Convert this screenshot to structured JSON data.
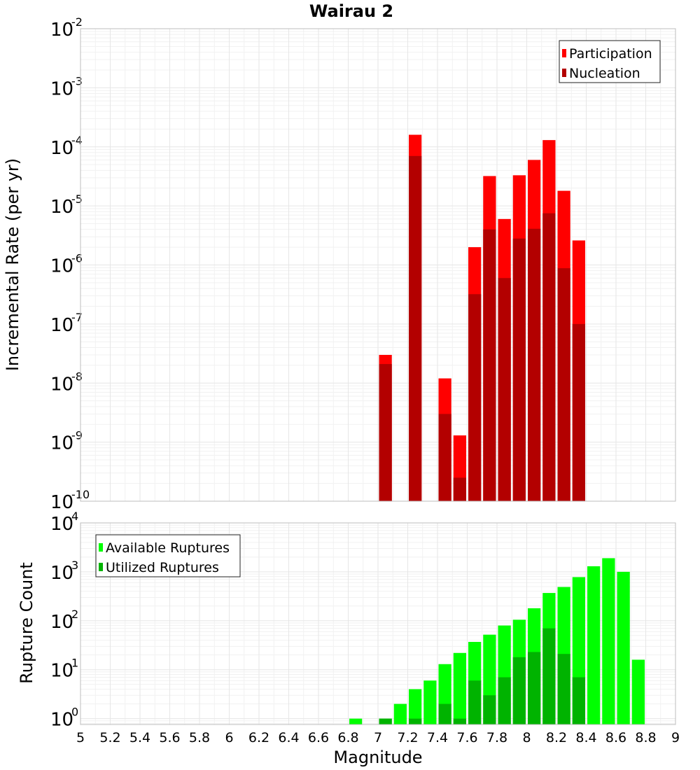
{
  "chart_data": [
    {
      "type": "bar",
      "title": "Wairau 2",
      "xlabel": "",
      "ylabel": "Incremental Rate (per yr)",
      "yscale": "log",
      "ylim_exp": [
        -10,
        -2
      ],
      "xlim": [
        5,
        9
      ],
      "bin_width": 0.1,
      "grid": true,
      "legend_position": "top-right",
      "series": [
        {
          "name": "Participation",
          "color": "#ff0000",
          "x": [
            7.05,
            7.25,
            7.45,
            7.55,
            7.65,
            7.75,
            7.85,
            7.95,
            8.05,
            8.15,
            8.25,
            8.35
          ],
          "values": [
            3e-08,
            0.00016,
            1.2e-08,
            1.3e-09,
            2e-06,
            3.2e-05,
            6e-06,
            3.3e-05,
            6e-05,
            0.00013,
            1.8e-05,
            2.6e-06
          ]
        },
        {
          "name": "Nucleation",
          "color": "#b30000",
          "x": [
            7.05,
            7.25,
            7.45,
            7.55,
            7.65,
            7.75,
            7.85,
            7.95,
            8.05,
            8.15,
            8.25,
            8.35
          ],
          "values": [
            2.1e-08,
            7e-05,
            3e-09,
            2.5e-10,
            3.2e-07,
            4e-06,
            6e-07,
            2.8e-06,
            4.1e-06,
            7.5e-06,
            8.8e-07,
            1e-07
          ]
        }
      ]
    },
    {
      "type": "bar",
      "title": "",
      "xlabel": "Magnitude",
      "ylabel": "Rupture Count",
      "yscale": "log",
      "ylim_exp": [
        -0.12,
        4
      ],
      "xlim": [
        5,
        9
      ],
      "bin_width": 0.1,
      "grid": true,
      "legend_position": "top-left",
      "x_ticks": [
        "5",
        "5.2",
        "5.4",
        "5.6",
        "5.8",
        "6",
        "6.2",
        "6.4",
        "6.6",
        "6.8",
        "7",
        "7.2",
        "7.4",
        "7.6",
        "7.8",
        "8",
        "8.2",
        "8.4",
        "8.6",
        "8.8",
        "9"
      ],
      "series": [
        {
          "name": "Available Ruptures",
          "color": "#00ff00",
          "x": [
            6.85,
            7.05,
            7.15,
            7.25,
            7.35,
            7.45,
            7.55,
            7.65,
            7.75,
            7.85,
            7.95,
            8.05,
            8.15,
            8.25,
            8.35,
            8.45,
            8.55,
            8.65,
            8.75
          ],
          "values": [
            1,
            1,
            2,
            4,
            6,
            13,
            22,
            37,
            52,
            80,
            105,
            180,
            370,
            490,
            780,
            1300,
            1900,
            1000,
            16
          ]
        },
        {
          "name": "Utilized Ruptures",
          "color": "#00b300",
          "x": [
            7.05,
            7.25,
            7.45,
            7.55,
            7.65,
            7.75,
            7.85,
            7.95,
            8.05,
            8.15,
            8.25,
            8.35
          ],
          "values": [
            1,
            1,
            2,
            1,
            6,
            3,
            7,
            18,
            23,
            70,
            21,
            7
          ]
        }
      ]
    }
  ]
}
